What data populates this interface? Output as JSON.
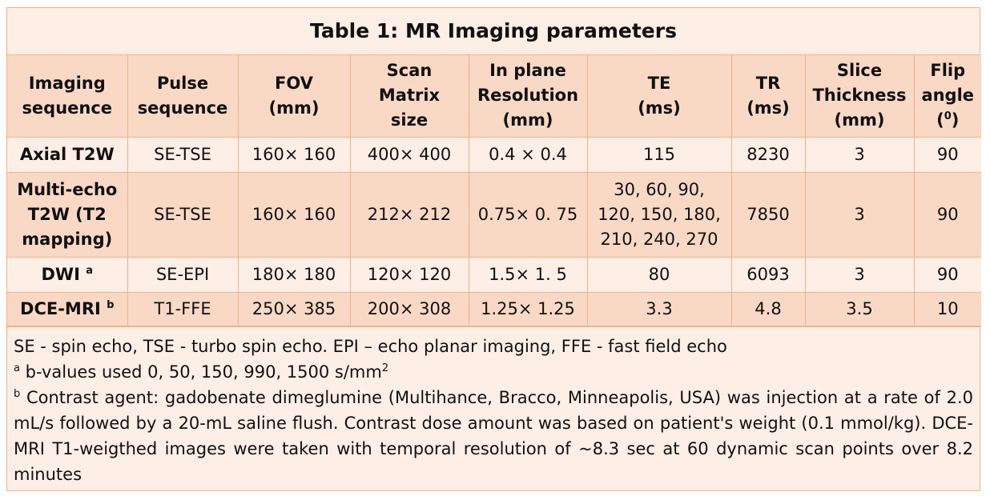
{
  "title": "Table 1: MR Imaging parameters",
  "headers": [
    [
      "Imaging",
      "sequence"
    ],
    [
      "Pulse",
      "sequence"
    ],
    [
      "FOV",
      "(mm)"
    ],
    [
      "Scan Matrix",
      "size"
    ],
    [
      "In plane",
      "Resolution",
      "(mm)"
    ],
    [
      "TE",
      "(ms)"
    ],
    [
      "TR",
      "(ms)"
    ],
    [
      "Slice",
      "Thickness",
      "(mm)"
    ],
    [
      "Flip",
      "angle",
      "(0)"
    ]
  ],
  "flip_sup": "0",
  "rows": [
    {
      "seq": "Axial T2W",
      "seq_lines": [
        "Axial T2W"
      ],
      "sup": "",
      "pulse": "SE-TSE",
      "fov": "160× 160",
      "matrix": "400× 400",
      "res": "0.4 × 0.4",
      "te_lines": [
        "115"
      ],
      "tr": "8230",
      "slice": "3",
      "flip": "90"
    },
    {
      "seq": "Multi-echo T2W (T2 mapping)",
      "seq_lines": [
        "Multi-echo",
        "T2W (T2",
        "mapping)"
      ],
      "sup": "",
      "pulse": "SE-TSE",
      "fov": "160× 160",
      "matrix": "212× 212",
      "res": "0.75× 0. 75",
      "te_lines": [
        "30, 60, 90,",
        "120, 150, 180,",
        "210, 240, 270"
      ],
      "tr": "7850",
      "slice": "3",
      "flip": "90"
    },
    {
      "seq": "DWI",
      "seq_lines": [
        "DWI"
      ],
      "sup": "a",
      "pulse": "SE-EPI",
      "fov": "180× 180",
      "matrix": "120× 120",
      "res": "1.5× 1. 5",
      "te_lines": [
        "80"
      ],
      "tr": "6093",
      "slice": "3",
      "flip": "90"
    },
    {
      "seq": "DCE-MRI",
      "seq_lines": [
        "DCE-MRI"
      ],
      "sup": "b",
      "pulse": "T1-FFE",
      "fov": "250× 385",
      "matrix": "200× 308",
      "res": "1.25× 1.25",
      "te_lines": [
        "3.3"
      ],
      "tr": "4.8",
      "slice": "3.5",
      "flip": "10"
    }
  ],
  "notes": {
    "abbrev": "SE - spin echo, TSE - turbo spin echo. EPI – echo planar imaging, FFE - fast field echo",
    "a_mark": "a",
    "a_text": " b-values used 0, 50, 150, 990, 1500 s/mm",
    "a_unit_sup": "2",
    "b_mark": "b",
    "b_text": " Contrast agent: gadobenate dimeglumine (Multihance, Bracco, Minneapolis, USA) was injection at a rate of 2.0 mL/s followed by a 20-mL saline flush. Contrast dose amount was based on patient's weight (0.1 mmol/kg). DCE-MRI T1-weigthed images were taken with temporal resolution of ~8.3 sec at 60 dynamic scan points over 8.2 minutes"
  }
}
